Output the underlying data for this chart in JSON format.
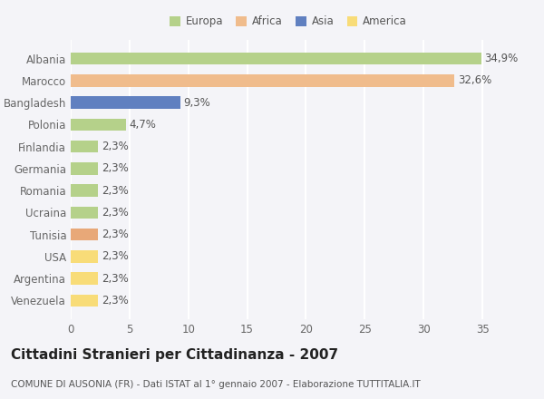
{
  "categories": [
    "Albania",
    "Marocco",
    "Bangladesh",
    "Polonia",
    "Finlandia",
    "Germania",
    "Romania",
    "Ucraina",
    "Tunisia",
    "USA",
    "Argentina",
    "Venezuela"
  ],
  "values": [
    34.9,
    32.6,
    9.3,
    4.7,
    2.3,
    2.3,
    2.3,
    2.3,
    2.3,
    2.3,
    2.3,
    2.3
  ],
  "labels": [
    "34,9%",
    "32,6%",
    "9,3%",
    "4,7%",
    "2,3%",
    "2,3%",
    "2,3%",
    "2,3%",
    "2,3%",
    "2,3%",
    "2,3%",
    "2,3%"
  ],
  "colors": [
    "#b5d18a",
    "#f0bc8c",
    "#6080c0",
    "#b5d18a",
    "#b5d18a",
    "#b5d18a",
    "#b5d18a",
    "#b5d18a",
    "#e8a878",
    "#f8dc78",
    "#f8dc78",
    "#f8dc78"
  ],
  "legend_labels": [
    "Europa",
    "Africa",
    "Asia",
    "America"
  ],
  "legend_colors": [
    "#b5d18a",
    "#f0bc8c",
    "#6080c0",
    "#f8dc78"
  ],
  "title": "Cittadini Stranieri per Cittadinanza - 2007",
  "subtitle": "COMUNE DI AUSONIA (FR) - Dati ISTAT al 1° gennaio 2007 - Elaborazione TUTTITALIA.IT",
  "xlim": [
    0,
    37
  ],
  "xticks": [
    0,
    5,
    10,
    15,
    20,
    25,
    30,
    35
  ],
  "background_color": "#f4f4f8",
  "plot_bg_color": "#f4f4f8",
  "grid_color": "#ffffff",
  "bar_height": 0.55,
  "label_fontsize": 8.5,
  "tick_fontsize": 8.5,
  "title_fontsize": 11,
  "subtitle_fontsize": 7.5,
  "label_color": "#555555",
  "tick_color": "#666666"
}
